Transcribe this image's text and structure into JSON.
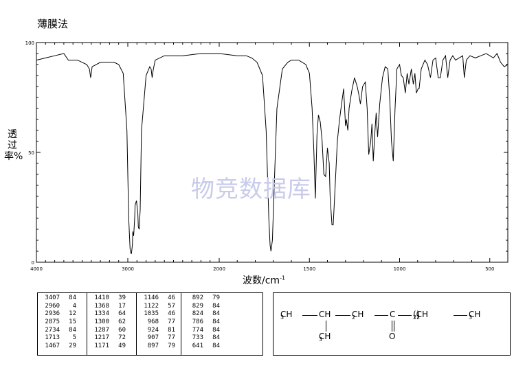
{
  "method": "薄膜法",
  "watermark": "物竞数据库",
  "chart_data": {
    "type": "line",
    "xlabel": "波数/cm",
    "xlabel_sup": "-1",
    "ylabel": "透过率%",
    "xlim": [
      4000,
      400
    ],
    "ylim": [
      0,
      100
    ],
    "x_ticks": [
      "4000",
      "3000",
      "2000",
      "1500",
      "1000",
      "500"
    ],
    "y_ticks": [
      "100",
      "50",
      "0"
    ],
    "series": [
      {
        "x": [
          4000,
          3900,
          3800,
          3700,
          3650,
          3550,
          3450,
          3420,
          3407,
          3390,
          3300,
          3200,
          3150,
          3100,
          3050,
          3010,
          2990,
          2975,
          2965,
          2960,
          2950,
          2945,
          2936,
          2925,
          2920,
          2905,
          2890,
          2885,
          2875,
          2865,
          2850,
          2800,
          2760,
          2745,
          2734,
          2720,
          2700,
          2600,
          2400,
          2200,
          2000,
          1900,
          1850,
          1820,
          1790,
          1760,
          1740,
          1725,
          1718,
          1713,
          1705,
          1695,
          1680,
          1650,
          1620,
          1600,
          1560,
          1520,
          1500,
          1485,
          1475,
          1467,
          1458,
          1450,
          1440,
          1430,
          1420,
          1410,
          1400,
          1390,
          1385,
          1375,
          1368,
          1360,
          1345,
          1334,
          1325,
          1310,
          1300,
          1295,
          1287,
          1280,
          1265,
          1250,
          1235,
          1225,
          1217,
          1205,
          1190,
          1180,
          1171,
          1160,
          1153,
          1146,
          1138,
          1130,
          1122,
          1110,
          1095,
          1080,
          1065,
          1055,
          1045,
          1035,
          1025,
          1015,
          1000,
          990,
          980,
          968,
          958,
          948,
          935,
          924,
          915,
          907,
          897,
          892,
          880,
          860,
          845,
          829,
          815,
          800,
          786,
          774,
          760,
          745,
          733,
          720,
          705,
          690,
          670,
          650,
          641,
          630,
          610,
          580,
          550,
          520,
          500,
          480,
          460,
          440,
          420,
          400
        ],
        "y": [
          92,
          93,
          94,
          95,
          92,
          92,
          90,
          88,
          84,
          89,
          91,
          91,
          91,
          90,
          86,
          60,
          20,
          6,
          4,
          4,
          8,
          14,
          12,
          20,
          26,
          28,
          22,
          16,
          15,
          24,
          60,
          85,
          89,
          88,
          84,
          88,
          92,
          94,
          94,
          95,
          95,
          94,
          94,
          93,
          91,
          85,
          60,
          20,
          8,
          5,
          10,
          35,
          70,
          88,
          91,
          92,
          92,
          90,
          86,
          70,
          50,
          29,
          58,
          67,
          64,
          56,
          40,
          39,
          52,
          45,
          30,
          17,
          17,
          30,
          55,
          64,
          70,
          79,
          62,
          65,
          60,
          70,
          78,
          84,
          80,
          76,
          72,
          80,
          82,
          70,
          49,
          55,
          63,
          46,
          58,
          68,
          57,
          72,
          84,
          89,
          88,
          75,
          55,
          46,
          70,
          88,
          90,
          85,
          84,
          77,
          86,
          81,
          88,
          81,
          86,
          77,
          79,
          79,
          88,
          92,
          90,
          84,
          92,
          93,
          84,
          84,
          92,
          94,
          84,
          92,
          94,
          92,
          93,
          94,
          84,
          92,
          94,
          93,
          94,
          95,
          94,
          93,
          95,
          91,
          89,
          90
        ]
      }
    ]
  },
  "peak_table": [
    [
      [
        "3407",
        "84"
      ],
      [
        "2960",
        "4"
      ],
      [
        "2936",
        "12"
      ],
      [
        "2875",
        "15"
      ],
      [
        "2734",
        "84"
      ],
      [
        "1713",
        "5"
      ],
      [
        "1467",
        "29"
      ]
    ],
    [
      [
        "1410",
        "39"
      ],
      [
        "1368",
        "17"
      ],
      [
        "1334",
        "64"
      ],
      [
        "1300",
        "62"
      ],
      [
        "1287",
        "60"
      ],
      [
        "1217",
        "72"
      ],
      [
        "1171",
        "49"
      ]
    ],
    [
      [
        "1146",
        "46"
      ],
      [
        "1122",
        "57"
      ],
      [
        "1035",
        "46"
      ],
      [
        "968",
        "77"
      ],
      [
        "924",
        "81"
      ],
      [
        "907",
        "77"
      ],
      [
        "897",
        "79"
      ]
    ],
    [
      [
        "892",
        "79"
      ],
      [
        "829",
        "84"
      ],
      [
        "824",
        "84"
      ],
      [
        "786",
        "84"
      ],
      [
        "774",
        "84"
      ],
      [
        "733",
        "84"
      ],
      [
        "641",
        "84"
      ]
    ]
  ],
  "structure": {
    "main_chain": [
      "CH",
      "3",
      "—",
      "CH",
      "—",
      "CH",
      "2",
      "—",
      "C",
      "—",
      "(CH",
      "2",
      ")",
      "2",
      "—",
      "CH",
      "3"
    ],
    "branch_methyl": [
      "CH",
      "3"
    ],
    "carbonyl_oxygen": "O"
  }
}
